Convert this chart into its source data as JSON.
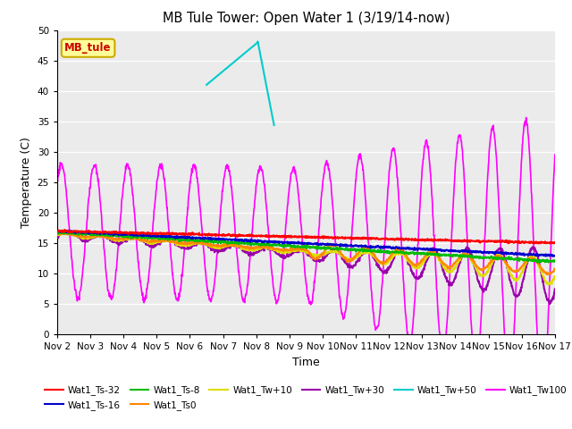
{
  "title": "MB Tule Tower: Open Water 1 (3/19/14-now)",
  "xlabel": "Time",
  "ylabel": "Temperature (C)",
  "ylim": [
    0,
    50
  ],
  "yticks": [
    0,
    5,
    10,
    15,
    20,
    25,
    30,
    35,
    40,
    45,
    50
  ],
  "xtick_labels": [
    "Nov 2",
    "Nov 3",
    "Nov 4",
    "Nov 5",
    "Nov 6",
    "Nov 7",
    "Nov 8",
    "Nov 9",
    "Nov 10",
    "Nov 11",
    "Nov 12",
    "Nov 13",
    "Nov 14",
    "Nov 15",
    "Nov 16",
    "Nov 17"
  ],
  "series": {
    "Wat1_Ts-32": {
      "color": "#ff0000",
      "lw": 1.5
    },
    "Wat1_Ts-16": {
      "color": "#0000cc",
      "lw": 1.5
    },
    "Wat1_Ts-8": {
      "color": "#00bb00",
      "lw": 1.5
    },
    "Wat1_Ts0": {
      "color": "#ff8800",
      "lw": 1.5
    },
    "Wat1_Tw+10": {
      "color": "#dddd00",
      "lw": 1.5
    },
    "Wat1_Tw+30": {
      "color": "#9900aa",
      "lw": 1.5
    },
    "Wat1_Tw+50": {
      "color": "#00cccc",
      "lw": 1.5
    },
    "Wat1_Tw100": {
      "color": "#ff00ff",
      "lw": 1.2
    }
  },
  "inset_label": "MB_tule",
  "inset_color": "#cc0000",
  "legend_bg": "#ffff99",
  "legend_edge": "#ccaa00"
}
